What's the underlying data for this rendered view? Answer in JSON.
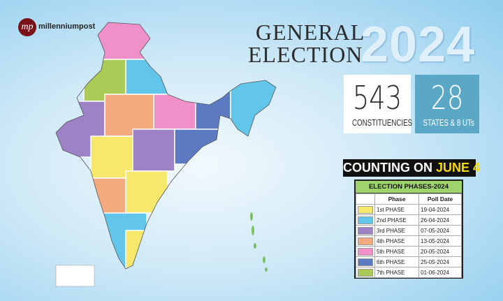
{
  "logo": {
    "mark": "mp",
    "name": "millenniumpost"
  },
  "header": {
    "line1": "GENERAL",
    "line2": "ELECTION",
    "year": "2024"
  },
  "stats": [
    {
      "value": "543",
      "label": "CONSTITUENCIES"
    },
    {
      "value": "28",
      "label": "STATES & 8 UTs"
    }
  ],
  "banner": {
    "text": "COUNTING ON",
    "highlight": "JUNE 4"
  },
  "table": {
    "title": "ELECTION PHASES-2024",
    "columns": [
      "Phase",
      "Poll Date"
    ],
    "rows": [
      {
        "color": "#f6e86a",
        "phase": "1st PHASE",
        "date": "19-04-2024"
      },
      {
        "color": "#62c6ea",
        "phase": "2nd PHASE",
        "date": "26-04-2024"
      },
      {
        "color": "#9d82c6",
        "phase": "3rd PHASE",
        "date": "07-05-2024"
      },
      {
        "color": "#f3aa7e",
        "phase": "4th PHASE",
        "date": "13-05-2024"
      },
      {
        "color": "#f090c8",
        "phase": "5th PHASE",
        "date": "20-05-2024"
      },
      {
        "color": "#5b7ac2",
        "phase": "6th PHASE",
        "date": "25-05-2024"
      },
      {
        "color": "#a9ca55",
        "phase": "7th PHASE",
        "date": "01-06-2024"
      }
    ]
  }
}
